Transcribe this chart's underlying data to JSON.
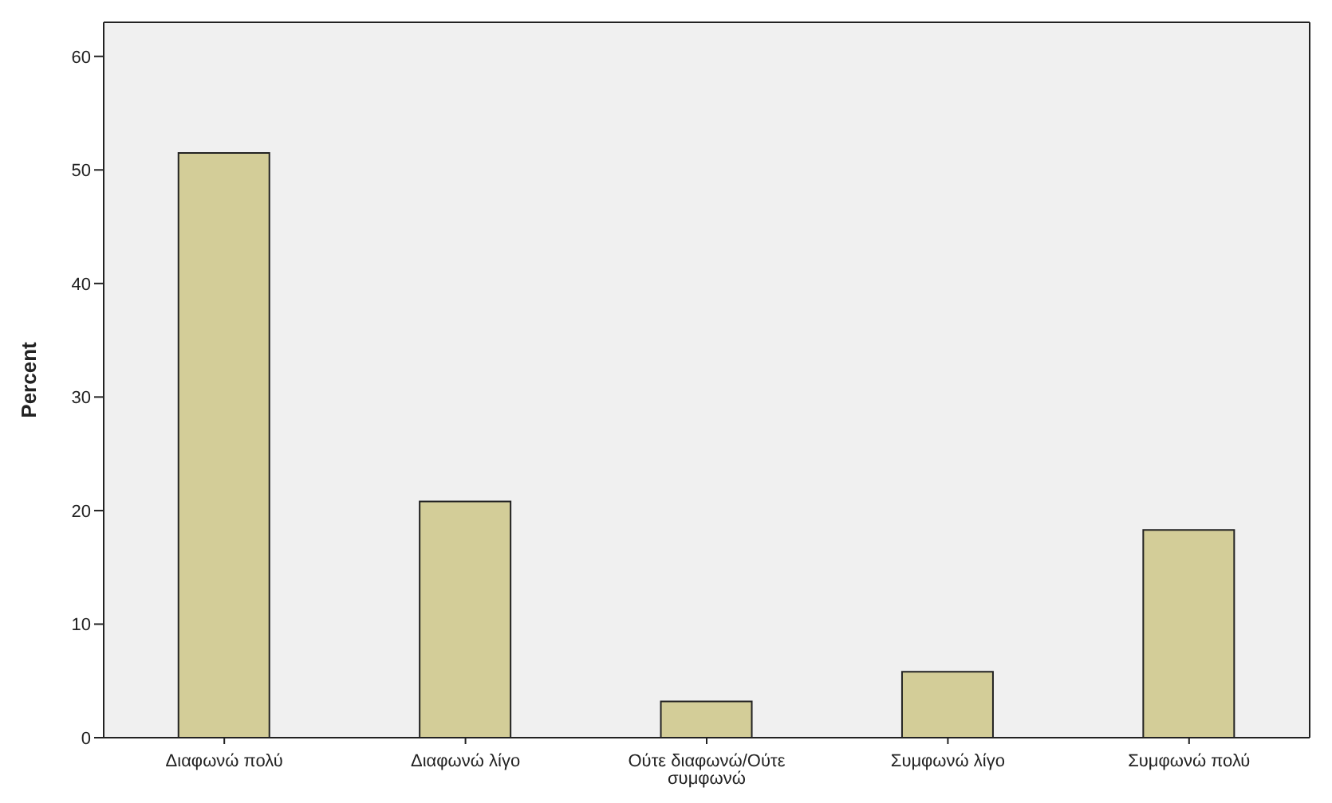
{
  "chart_data": {
    "type": "bar",
    "ylabel": "Percent",
    "categories": [
      "Διαφωνώ πολύ",
      "Διαφωνώ λίγο",
      "Ούτε διαφωνώ/Ούτε συμφωνώ",
      "Συμφωνώ λίγο",
      "Συμφωνώ πολύ"
    ],
    "values": [
      51.5,
      20.8,
      3.2,
      5.8,
      18.3
    ],
    "color": "#d3cd98",
    "ylim": [
      0,
      63
    ],
    "yticks": [
      0,
      10,
      20,
      30,
      40,
      50,
      60
    ],
    "grid": false,
    "legend": false
  }
}
